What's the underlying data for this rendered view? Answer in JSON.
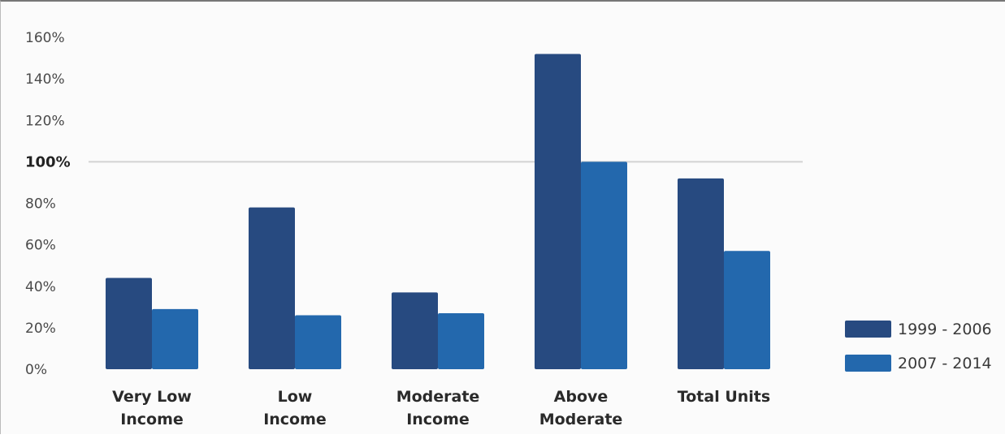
{
  "chart_data": {
    "type": "bar",
    "categories": [
      "Very Low\nIncome",
      "Low\nIncome",
      "Moderate\nIncome",
      "Above\nModerate",
      "Total Units"
    ],
    "series": [
      {
        "name": "1999 - 2006",
        "values": [
          44,
          78,
          37,
          152,
          92
        ]
      },
      {
        "name": "2007 - 2014",
        "values": [
          29,
          26,
          27,
          100,
          57
        ]
      }
    ],
    "ylim": [
      0,
      160
    ],
    "yticks": [
      0,
      20,
      40,
      60,
      80,
      100,
      120,
      140,
      160
    ],
    "ytick_labels": [
      "0%",
      "20%",
      "40%",
      "60%",
      "80%",
      "100%",
      "120%",
      "140%",
      "160%"
    ],
    "reference_line": 100,
    "grid": false,
    "legend_position": "right",
    "colors": {
      "series_0": "#274a80",
      "series_1": "#2368ad",
      "reference_line": "#d2d2d2"
    }
  }
}
